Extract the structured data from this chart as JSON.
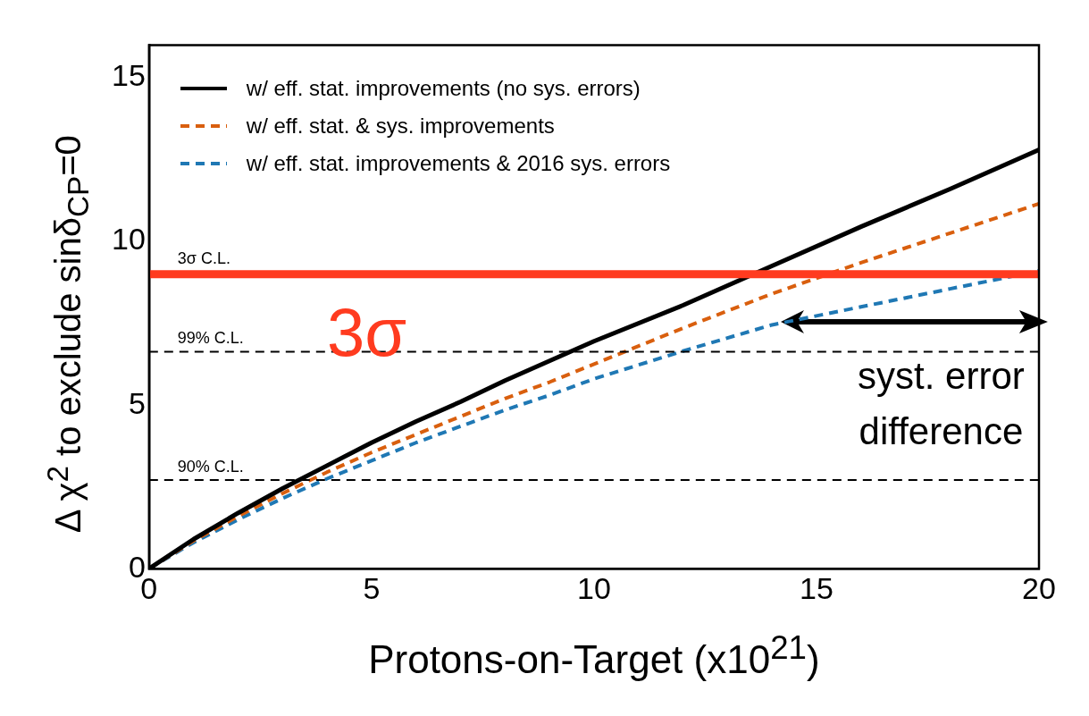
{
  "chart_data": {
    "type": "line",
    "xlabel": "Protons-on-Target (x10$^{21}$)",
    "ylabel": "Δ χ$^{2}$ to exclude sinδ$_{CP}$=0",
    "xlim": [
      0,
      20
    ],
    "xticks": [
      0,
      5,
      10,
      15,
      20
    ],
    "ylim": [
      0,
      16
    ],
    "yticks": [
      0,
      5,
      10,
      15
    ],
    "legend": "top left",
    "marker": "none",
    "series": [
      {
        "name": "w/ eff. stat. improvements (no sys. errors)",
        "color": "#000000",
        "line_style": "solid",
        "x": [
          0,
          1,
          2,
          3,
          4,
          5,
          6,
          7,
          8,
          9,
          10,
          12,
          14,
          16,
          18,
          20
        ],
        "values": [
          0,
          0.9,
          1.7,
          2.45,
          3.15,
          3.85,
          4.5,
          5.1,
          5.75,
          6.35,
          6.95,
          8.05,
          9.25,
          10.45,
          11.6,
          12.8
        ]
      },
      {
        "name": "w/ eff. stat. & sys. improvements",
        "color": "#d95f0e",
        "line_style": "dashed",
        "x": [
          0,
          1,
          2,
          3,
          4,
          5,
          6,
          7,
          8,
          9,
          10,
          12,
          14,
          16,
          18,
          20
        ],
        "values": [
          0,
          0.85,
          1.6,
          2.3,
          2.95,
          3.55,
          4.1,
          4.65,
          5.2,
          5.7,
          6.25,
          7.35,
          8.4,
          9.35,
          10.25,
          11.15
        ]
      },
      {
        "name": "w/ eff. stat. improvements & 2016 sys. errors",
        "color": "#1f78b4",
        "line_style": "dashed",
        "x": [
          0,
          1,
          2,
          3,
          4,
          5,
          6,
          7,
          8,
          9,
          10,
          12,
          14,
          16,
          18,
          20
        ],
        "values": [
          0,
          0.8,
          1.5,
          2.15,
          2.75,
          3.3,
          3.85,
          4.35,
          4.85,
          5.3,
          5.8,
          6.65,
          7.45,
          8.0,
          8.55,
          9.1
        ]
      }
    ],
    "ref_lines": [
      {
        "axis": "y",
        "value": 9,
        "label": "3σ C.L.",
        "color": "#ff3b1f",
        "line_style": "solid"
      },
      {
        "axis": "y",
        "value": 6.63,
        "label": "99% C.L.",
        "color": "#000000",
        "line_style": "dashed"
      },
      {
        "axis": "y",
        "value": 2.71,
        "label": "90% C.L.",
        "color": "#000000",
        "line_style": "dashed"
      }
    ],
    "annotations": [
      "3σ",
      "syst. error difference"
    ]
  }
}
